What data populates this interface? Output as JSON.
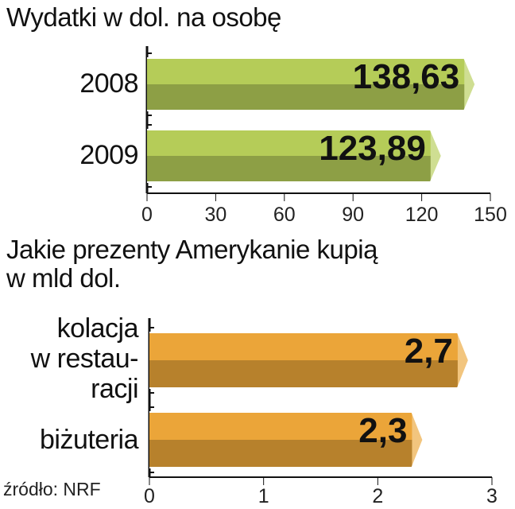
{
  "chart_data": [
    {
      "type": "bar",
      "title": "Wydatki w dol. na osobę",
      "categories": [
        "2008",
        "2009"
      ],
      "values": [
        138.63,
        123.89
      ],
      "value_labels": [
        "138,63",
        "123,89"
      ],
      "xlim": [
        0,
        150
      ],
      "ticks": [
        "0",
        "30",
        "60",
        "90",
        "120",
        "150"
      ],
      "orientation": "horizontal",
      "color": "#b5cc58"
    },
    {
      "type": "bar",
      "title_line1": "Jakie prezenty Amerykanie kupią",
      "title_line2": "w mld dol.",
      "categories": [
        [
          "kolacja",
          "w restau-",
          "racji"
        ],
        [
          "biżuteria"
        ]
      ],
      "values": [
        2.7,
        2.3
      ],
      "value_labels": [
        "2,7",
        "2,3"
      ],
      "xlim": [
        0,
        3
      ],
      "ticks": [
        "0",
        "1",
        "2",
        "3"
      ],
      "orientation": "horizontal",
      "color": "#eba539"
    }
  ],
  "source": "źródło: NRF"
}
